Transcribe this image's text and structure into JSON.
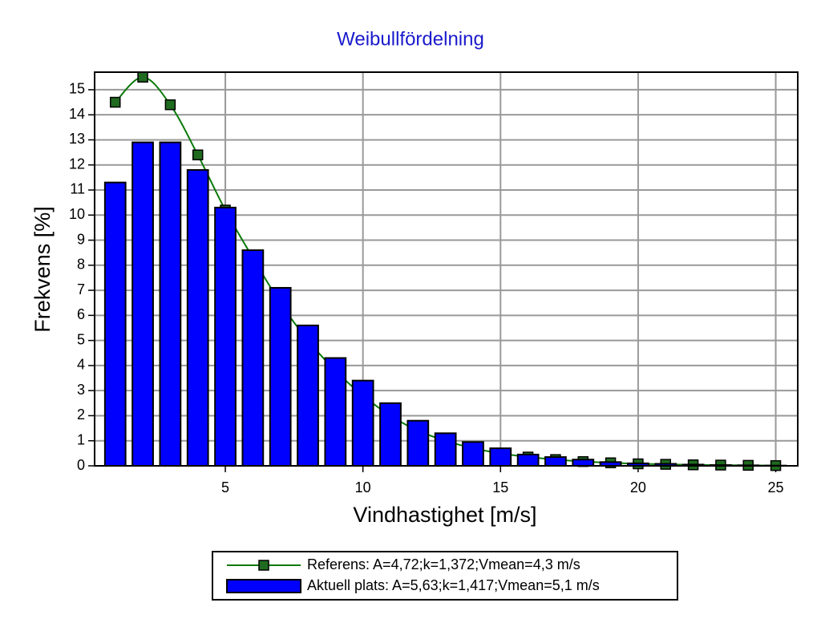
{
  "chart_data": {
    "type": "bar",
    "title": "Weibullfördelning",
    "x_label": "Vindhastighet [m/s]",
    "y_label": "Frekvens [%]",
    "x": [
      1,
      2,
      3,
      4,
      5,
      6,
      7,
      8,
      9,
      10,
      11,
      12,
      13,
      14,
      15,
      16,
      17,
      18,
      19,
      20,
      21,
      22,
      23,
      24,
      25
    ],
    "series": [
      {
        "name": "Referens: A=4,72;k=1,372;Vmean=4,3 m/s",
        "type": "line",
        "color": "#0a7a0a",
        "marker_color": "#1f6b1f",
        "values": [
          14.5,
          15.5,
          14.4,
          12.4,
          10.2,
          8.3,
          6.5,
          5.0,
          3.8,
          2.8,
          2.0,
          1.4,
          1.0,
          0.7,
          0.5,
          0.35,
          0.25,
          0.17,
          0.12,
          0.08,
          0.06,
          0.04,
          0.03,
          0.02,
          0.01
        ]
      },
      {
        "name": "Aktuell plats: A=5,63;k=1,417;Vmean=5,1 m/s",
        "type": "bar",
        "color": "#0000ff",
        "values": [
          11.3,
          12.9,
          12.9,
          11.8,
          10.3,
          8.6,
          7.1,
          5.6,
          4.3,
          3.4,
          2.5,
          1.8,
          1.3,
          0.95,
          0.7,
          0.45,
          0.35,
          0.25,
          0.15,
          0.1,
          0.08,
          0.05,
          0.03,
          0.02,
          0.01
        ]
      }
    ],
    "xlim": [
      0.25,
      25.8
    ],
    "ylim": [
      0,
      15.7
    ],
    "xticks": [
      5,
      10,
      15,
      20,
      25
    ],
    "yticks": [
      0,
      1,
      2,
      3,
      4,
      5,
      6,
      7,
      8,
      9,
      10,
      11,
      12,
      13,
      14,
      15
    ],
    "grid": true,
    "legend": "bottom"
  }
}
